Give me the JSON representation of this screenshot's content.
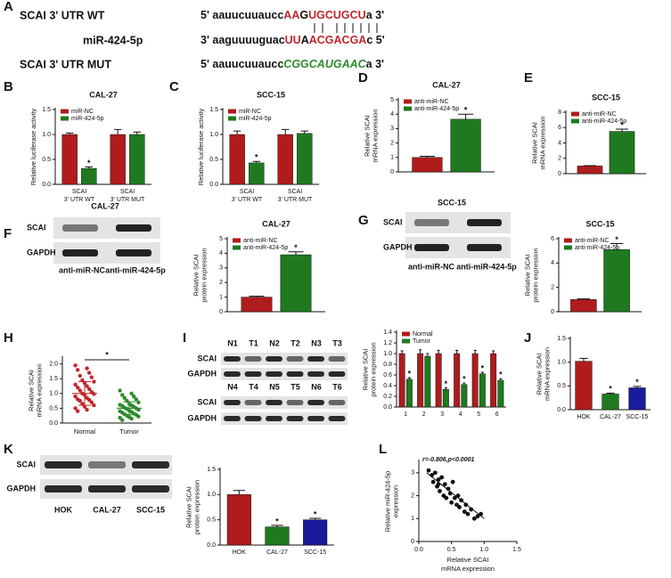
{
  "panel_labels": [
    "A",
    "B",
    "C",
    "D",
    "E",
    "F",
    "G",
    "H",
    "I",
    "J",
    "K",
    "L"
  ],
  "sequences": [
    {
      "label": "SCAI  3' UTR WT",
      "segments": [
        {
          "text": "5' aauucuuaucc",
          "color": "#111111"
        },
        {
          "text": "AA",
          "color": "#c0282d"
        },
        {
          "text": "G",
          "color": "#111111"
        },
        {
          "text": "UGCUGCU",
          "color": "#c0282d"
        },
        {
          "text": "a 3'",
          "color": "#111111"
        }
      ]
    },
    {
      "label": "miR-424-5p",
      "segments": [
        {
          "text": "3' aaguuuuguac",
          "color": "#111111"
        },
        {
          "text": "UU",
          "color": "#c0282d"
        },
        {
          "text": "A",
          "color": "#111111"
        },
        {
          "text": "ACGACGA",
          "color": "#c0282d"
        },
        {
          "text": "c 5'",
          "color": "#111111"
        }
      ]
    },
    {
      "label": "SCAI  3' UTR MUT",
      "segments": [
        {
          "text": "5' aauucuuaucc",
          "color": "#111111"
        },
        {
          "text": "CG",
          "color": "#2e8b2e",
          "italic": true
        },
        {
          "text": "G",
          "color": "#2e8b2e"
        },
        {
          "text": "CAUGAAC",
          "color": "#2e8b2e",
          "italic": true
        },
        {
          "text": "a 3'",
          "color": "#111111"
        }
      ]
    }
  ],
  "blots": [
    {
      "title": "CAL-27",
      "rows": [
        "SCAI",
        "GAPDH"
      ],
      "lanes": [
        "anti-miR-NC",
        "anti-miR-424-5p"
      ]
    },
    {
      "title": "SCC-15",
      "rows": [
        "SCAI",
        "GAPDH"
      ],
      "lanes": [
        "anti-miR-NC",
        "anti-miR-424-5p"
      ]
    },
    {
      "rows": [
        "SCAI",
        "GAPDH",
        "SCAI",
        "GAPDH"
      ],
      "lanes": [
        [
          "N1",
          "T1",
          "N2",
          "T2",
          "N3",
          "T3"
        ],
        [
          "N4",
          "T4",
          "N5",
          "T5",
          "N6",
          "T6"
        ]
      ]
    },
    {
      "rows": [
        "SCAI",
        "GAPDH"
      ],
      "lanes": [
        "HOK",
        "CAL-27",
        "SCC-15"
      ]
    }
  ],
  "chart_data": [
    {
      "type": "bar",
      "title": "CAL-27",
      "ylabel": [
        "Relative luciferase activity"
      ],
      "categories": [
        [
          "SCAI",
          "3' UTR WT"
        ],
        [
          "SCAI",
          "3' UTR MUT"
        ]
      ],
      "series": [
        {
          "name": "miR-NC",
          "color": "#b01c1c",
          "values": [
            1.0,
            1.0
          ],
          "errors": [
            0.03,
            0.1
          ],
          "stars": [
            null,
            null
          ]
        },
        {
          "name": "miR-424-5p",
          "color": "#1f7a1f",
          "values": [
            0.32,
            1.0
          ],
          "errors": [
            0.03,
            0.05
          ],
          "stars": [
            "*",
            null
          ]
        }
      ],
      "ylim": [
        0,
        1.5
      ],
      "yticks": [
        {
          "value": 0,
          "label": "0.0"
        },
        {
          "value": 0.5,
          "label": "0.5"
        },
        {
          "value": 1,
          "label": "1.0"
        },
        {
          "value": 1.5,
          "label": "1.5"
        }
      ]
    },
    {
      "type": "bar",
      "title": "SCC-15",
      "ylabel": [
        "Relative luciferase activity"
      ],
      "categories": [
        [
          "SCAI",
          "3' UTR WT"
        ],
        [
          "SCAI",
          "3' UTR MUT"
        ]
      ],
      "series": [
        {
          "name": "miR-NC",
          "color": "#b01c1c",
          "values": [
            1.0,
            1.0
          ],
          "errors": [
            0.07,
            0.1
          ],
          "stars": [
            null,
            null
          ]
        },
        {
          "name": "miR-424-5p",
          "color": "#1f7a1f",
          "values": [
            0.43,
            1.02
          ],
          "errors": [
            0.03,
            0.05
          ],
          "stars": [
            "*",
            null
          ]
        }
      ],
      "ylim": [
        0,
        1.5
      ],
      "yticks": [
        {
          "value": 0,
          "label": "0.0"
        },
        {
          "value": 0.5,
          "label": "0.5"
        },
        {
          "value": 1,
          "label": "1.0"
        },
        {
          "value": 1.5,
          "label": "1.5"
        }
      ]
    },
    {
      "type": "bar",
      "title": "CAL-27",
      "ylabel": [
        "Relative SCAI",
        "mRNA expression"
      ],
      "series": [
        {
          "name": "anti-miR-NC",
          "color": "#b01c1c",
          "values": [
            1.0
          ],
          "errors": [
            0.08
          ],
          "stars": [
            null
          ]
        },
        {
          "name": "anti-miR-424-5p",
          "color": "#1f7a1f",
          "values": [
            3.65
          ],
          "errors": [
            0.35
          ],
          "stars": [
            "*"
          ]
        }
      ],
      "ylim": [
        0,
        5
      ],
      "yticks": [
        0,
        1,
        2,
        3,
        4,
        5
      ]
    },
    {
      "type": "bar",
      "title": "SCC-15",
      "ylabel": [
        "Relative SCAI",
        "mRNA expression"
      ],
      "series": [
        {
          "name": "anti-miR-NC",
          "color": "#b01c1c",
          "values": [
            1.0
          ],
          "errors": [
            0.05
          ],
          "stars": [
            null
          ]
        },
        {
          "name": "anti-miR-424-5p",
          "color": "#1f7a1f",
          "values": [
            5.5
          ],
          "errors": [
            0.3
          ],
          "stars": [
            "*"
          ]
        }
      ],
      "ylim": [
        0,
        8
      ],
      "yticks": [
        0,
        2,
        4,
        6,
        8
      ]
    },
    {
      "type": "bar",
      "title": "CAL-27",
      "ylabel": [
        "Relative SCAI",
        "protein expression"
      ],
      "series": [
        {
          "name": "anti-miR-NC",
          "color": "#b01c1c",
          "values": [
            1.0
          ],
          "errors": [
            0.06
          ],
          "stars": [
            null
          ]
        },
        {
          "name": "anti-miR-424-5p",
          "color": "#1f7a1f",
          "values": [
            3.9
          ],
          "errors": [
            0.2
          ],
          "stars": [
            "*"
          ]
        }
      ],
      "ylim": [
        0,
        5
      ],
      "yticks": [
        0,
        1,
        2,
        3,
        4,
        5
      ]
    },
    {
      "type": "bar",
      "title": "SCC-15",
      "ylabel": [
        "Relative SCAI",
        "protein expression"
      ],
      "series": [
        {
          "name": "anti-miR-NC",
          "color": "#b01c1c",
          "values": [
            1.0
          ],
          "errors": [
            0.05
          ],
          "stars": [
            null
          ]
        },
        {
          "name": "anti-miR-424-5p",
          "color": "#1f7a1f",
          "values": [
            5.1
          ],
          "errors": [
            0.5
          ],
          "stars": [
            "*"
          ]
        }
      ],
      "ylim": [
        0,
        6
      ],
      "yticks": [
        0,
        2,
        4,
        6
      ]
    },
    {
      "type": "dotplot",
      "ylabel": [
        "Relative SCAI",
        "mRNA expression"
      ],
      "categories": [
        "Normal",
        "Tumor"
      ],
      "colors": [
        "#c0282d",
        "#2e8b2e"
      ],
      "values": [
        [
          1.95,
          1.85,
          1.8,
          1.7,
          1.6,
          1.55,
          1.45,
          1.4,
          1.35,
          1.3,
          1.25,
          1.2,
          1.15,
          1.1,
          1.05,
          1.0,
          0.98,
          0.95,
          0.9,
          0.85,
          0.8,
          0.78,
          0.75,
          0.7,
          0.65,
          0.6,
          0.55,
          0.5,
          0.45,
          0.4
        ],
        [
          1.1,
          1.0,
          0.95,
          0.9,
          0.85,
          0.8,
          0.75,
          0.7,
          0.65,
          0.62,
          0.6,
          0.58,
          0.55,
          0.52,
          0.5,
          0.48,
          0.45,
          0.42,
          0.4,
          0.38,
          0.35,
          0.32,
          0.3,
          0.28,
          0.25,
          0.22,
          0.2,
          0.18,
          0.15,
          0.1
        ]
      ],
      "means": [
        1.0,
        0.5
      ],
      "sds": [
        0.4,
        0.22
      ],
      "annotation": "*",
      "ylim": [
        0,
        2.2
      ],
      "yticks": [
        {
          "value": 0,
          "label": "0.0"
        },
        {
          "value": 0.5,
          "label": "0.5"
        },
        {
          "value": 1,
          "label": "1.0"
        },
        {
          "value": 1.5,
          "label": "1.5"
        },
        {
          "value": 2,
          "label": "2.0"
        }
      ]
    },
    {
      "type": "bar",
      "ylabel": [
        "Relative SCAI",
        "protein expression"
      ],
      "categories": [
        "1",
        "2",
        "3",
        "4",
        "5",
        "6"
      ],
      "series": [
        {
          "name": "Normal",
          "color": "#b01c1c",
          "values": [
            1.0,
            1.0,
            1.0,
            1.0,
            1.0,
            1.0
          ],
          "errors": [
            0.05,
            0.07,
            0.06,
            0.06,
            0.06,
            0.05
          ],
          "stars": [
            null,
            null,
            null,
            null,
            null,
            null
          ]
        },
        {
          "name": "Tumor",
          "color": "#1f7a1f",
          "values": [
            0.52,
            0.95,
            0.33,
            0.42,
            0.62,
            0.5
          ],
          "errors": [
            0.03,
            0.05,
            0.03,
            0.03,
            0.03,
            0.03
          ],
          "stars": [
            "*",
            null,
            "*",
            "*",
            "*",
            "*"
          ]
        }
      ],
      "ylim": [
        0,
        1.4
      ],
      "yticks": [
        {
          "value": 0,
          "label": "0.0"
        },
        {
          "value": 0.2,
          "label": "0.2"
        },
        {
          "value": 0.4,
          "label": "0.4"
        },
        {
          "value": 0.6,
          "label": "0.6"
        },
        {
          "value": 0.8,
          "label": "0.8"
        },
        {
          "value": 1,
          "label": "1.0"
        },
        {
          "value": 1.2,
          "label": "1.2"
        },
        {
          "value": 1.4,
          "label": "1.4"
        }
      ]
    },
    {
      "type": "bar",
      "ylabel": [
        "Relative SCAI",
        "mRNA expression"
      ],
      "categories": [
        "HOK",
        "CAL-27",
        "SCC-15"
      ],
      "values": [
        1.02,
        0.33,
        0.46
      ],
      "errors": [
        0.06,
        0.02,
        0.03
      ],
      "stars": [
        null,
        "*",
        "*"
      ],
      "colors": [
        "#b01c1c",
        "#1f7a1f",
        "#1a1a9c"
      ],
      "ylim": [
        0,
        1.5
      ],
      "yticks": [
        {
          "value": 0,
          "label": "0.0"
        },
        {
          "value": 0.5,
          "label": "0.5"
        },
        {
          "value": 1,
          "label": "1.0"
        },
        {
          "value": 1.5,
          "label": "1.5"
        }
      ]
    },
    {
      "type": "bar",
      "ylabel": [
        "Relative SCAI",
        "protein expression"
      ],
      "categories": [
        "HOK",
        "CAL-27",
        "SCC-15"
      ],
      "values": [
        1.0,
        0.36,
        0.5
      ],
      "errors": [
        0.08,
        0.03,
        0.03
      ],
      "stars": [
        null,
        "*",
        "*"
      ],
      "colors": [
        "#b01c1c",
        "#1f7a1f",
        "#1a1a9c"
      ],
      "ylim": [
        0,
        1.5
      ],
      "yticks": [
        {
          "value": 0,
          "label": "0.0"
        },
        {
          "value": 0.5,
          "label": "0.5"
        },
        {
          "value": 1,
          "label": "1.0"
        },
        {
          "value": 1.5,
          "label": "1.5"
        }
      ]
    },
    {
      "type": "scatter",
      "ylabel": [
        "Relative miR-424-5p",
        "expression"
      ],
      "xlabel": [
        "Relative SCAI",
        "mRNA expression"
      ],
      "annotation": "r=-0.806,p<0.0001",
      "color": "#111111",
      "x": [
        0.15,
        0.2,
        0.22,
        0.25,
        0.28,
        0.3,
        0.32,
        0.35,
        0.38,
        0.4,
        0.42,
        0.45,
        0.48,
        0.5,
        0.52,
        0.55,
        0.58,
        0.6,
        0.62,
        0.65,
        0.7,
        0.72,
        0.75,
        0.8,
        0.85,
        0.9,
        0.95,
        0.3
      ],
      "y": [
        3.1,
        2.9,
        2.6,
        3.0,
        2.4,
        2.7,
        2.2,
        2.8,
        2.0,
        2.5,
        1.9,
        2.3,
        2.1,
        1.7,
        2.6,
        1.9,
        1.6,
        2.0,
        1.5,
        1.8,
        1.3,
        1.6,
        1.2,
        1.4,
        1.0,
        1.1,
        1.2,
        2.5
      ],
      "trend": {
        "x": [
          0.12,
          1.0
        ],
        "y": [
          3.0,
          1.0
        ]
      },
      "xlim": [
        0,
        1.5
      ],
      "xticks": [
        {
          "value": 0,
          "label": "0.0"
        },
        {
          "value": 0.5,
          "label": "0.5"
        },
        {
          "value": 1,
          "label": "1.0"
        },
        {
          "value": 1.5,
          "label": "1.5"
        }
      ],
      "ylim": [
        0,
        3.5
      ],
      "yticks": [
        0,
        1,
        2,
        3
      ]
    }
  ]
}
